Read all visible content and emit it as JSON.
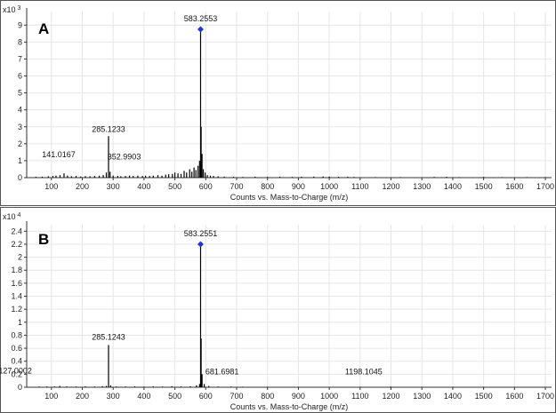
{
  "chart_data": [
    {
      "type": "bar",
      "panel_letter": "A",
      "scale_prefix": "x10",
      "scale_exponent": "3",
      "xlabel": "Counts vs. Mass-to-Charge (m/z)",
      "xlim": [
        20,
        1720
      ],
      "ylim": [
        0,
        9.8
      ],
      "x_ticks": [
        "100",
        "200",
        "300",
        "400",
        "500",
        "600",
        "700",
        "800",
        "900",
        "1000",
        "1100",
        "1200",
        "1300",
        "1400",
        "1500",
        "1600",
        "1700"
      ],
      "y_ticks": [
        "0",
        "1",
        "2",
        "3",
        "4",
        "5",
        "6",
        "7",
        "8",
        "9"
      ],
      "grid": true,
      "colors": {
        "peaks": "#000000",
        "marker": "#1f35d6",
        "grid": "#e6e6e6",
        "frame": "#555555"
      },
      "annotations": [
        {
          "text": "583.2553",
          "x": 583.2553,
          "y": 8.75,
          "marker": "diamond"
        },
        {
          "text": "285.1233",
          "x": 285.1233,
          "y": 2.45
        },
        {
          "text": "141.0167",
          "x": 141.0167,
          "y": 0.25
        },
        {
          "text": "352.9903",
          "x": 352.9903,
          "y": 0.12
        }
      ],
      "peaks": [
        [
          50,
          0.05
        ],
        [
          70,
          0.06
        ],
        [
          90,
          0.08
        ],
        [
          105,
          0.1
        ],
        [
          115,
          0.12
        ],
        [
          128,
          0.15
        ],
        [
          141,
          0.25
        ],
        [
          152,
          0.12
        ],
        [
          165,
          0.08
        ],
        [
          180,
          0.1
        ],
        [
          195,
          0.07
        ],
        [
          210,
          0.09
        ],
        [
          225,
          0.08
        ],
        [
          240,
          0.1
        ],
        [
          255,
          0.12
        ],
        [
          268,
          0.15
        ],
        [
          278,
          0.3
        ],
        [
          285.1233,
          2.45
        ],
        [
          290,
          0.35
        ],
        [
          300,
          0.12
        ],
        [
          315,
          0.1
        ],
        [
          325,
          0.08
        ],
        [
          340,
          0.1
        ],
        [
          352.9903,
          0.12
        ],
        [
          365,
          0.1
        ],
        [
          380,
          0.12
        ],
        [
          395,
          0.1
        ],
        [
          405,
          0.12
        ],
        [
          418,
          0.1
        ],
        [
          430,
          0.12
        ],
        [
          445,
          0.15
        ],
        [
          458,
          0.12
        ],
        [
          470,
          0.18
        ],
        [
          480,
          0.2
        ],
        [
          492,
          0.22
        ],
        [
          500,
          0.3
        ],
        [
          510,
          0.25
        ],
        [
          520,
          0.22
        ],
        [
          530,
          0.4
        ],
        [
          538,
          0.3
        ],
        [
          548,
          0.5
        ],
        [
          555,
          0.35
        ],
        [
          562,
          0.6
        ],
        [
          568,
          0.45
        ],
        [
          575,
          0.7
        ],
        [
          580,
          1.0
        ],
        [
          583.2553,
          8.75
        ],
        [
          585,
          3.0
        ],
        [
          588,
          1.4
        ],
        [
          592,
          0.5
        ],
        [
          598,
          0.3
        ],
        [
          605,
          0.15
        ],
        [
          615,
          0.12
        ],
        [
          625,
          0.1
        ],
        [
          640,
          0.08
        ],
        [
          660,
          0.06
        ],
        [
          690,
          0.05
        ],
        [
          720,
          0.04
        ],
        [
          760,
          0.05
        ],
        [
          800,
          0.04
        ],
        [
          840,
          0.05
        ],
        [
          880,
          0.04
        ],
        [
          910,
          0.05
        ],
        [
          950,
          0.06
        ],
        [
          980,
          0.07
        ],
        [
          1000,
          0.06
        ],
        [
          1030,
          0.05
        ],
        [
          1060,
          0.05
        ],
        [
          1080,
          0.04
        ],
        [
          1150,
          0.03
        ],
        [
          1230,
          0.03
        ],
        [
          1340,
          0.04
        ],
        [
          1380,
          0.05
        ],
        [
          1420,
          0.03
        ],
        [
          1500,
          0.04
        ],
        [
          1560,
          0.03
        ],
        [
          1640,
          0.03
        ],
        [
          1700,
          0.03
        ]
      ]
    },
    {
      "type": "bar",
      "panel_letter": "B",
      "scale_prefix": "x10",
      "scale_exponent": "4",
      "xlabel": "Counts vs. Mass-to-Charge (m/z)",
      "xlim": [
        20,
        1720
      ],
      "ylim": [
        0,
        2.5
      ],
      "x_ticks": [
        "100",
        "200",
        "300",
        "400",
        "500",
        "600",
        "700",
        "800",
        "900",
        "1000",
        "1100",
        "1200",
        "1300",
        "1400",
        "1500",
        "1600",
        "1700"
      ],
      "y_ticks": [
        "0",
        "0.2",
        "0.4",
        "0.6",
        "0.8",
        "1",
        "1.2",
        "1.4",
        "1.6",
        "1.8",
        "2",
        "2.2",
        "2.4"
      ],
      "grid": true,
      "colors": {
        "peaks": "#000000",
        "marker": "#1f35d6",
        "grid": "#e6e6e6",
        "frame": "#555555"
      },
      "annotations": [
        {
          "text": "583.2551",
          "x": 583.2551,
          "y": 2.2,
          "marker": "diamond"
        },
        {
          "text": "285.1243",
          "x": 285.1243,
          "y": 0.65
        },
        {
          "text": "127.0002",
          "x": 127.0002,
          "y": 0.02
        },
        {
          "text": "681.6981",
          "x": 681.6981,
          "y": 0.01
        },
        {
          "text": "1198.1045",
          "x": 1198.1045,
          "y": 0.01
        }
      ],
      "peaks": [
        [
          60,
          0.01
        ],
        [
          85,
          0.01
        ],
        [
          110,
          0.012
        ],
        [
          127,
          0.02
        ],
        [
          150,
          0.01
        ],
        [
          180,
          0.01
        ],
        [
          210,
          0.012
        ],
        [
          240,
          0.01
        ],
        [
          265,
          0.015
        ],
        [
          278,
          0.02
        ],
        [
          285.1243,
          0.65
        ],
        [
          292,
          0.03
        ],
        [
          310,
          0.01
        ],
        [
          340,
          0.01
        ],
        [
          370,
          0.012
        ],
        [
          400,
          0.01
        ],
        [
          430,
          0.012
        ],
        [
          460,
          0.01
        ],
        [
          490,
          0.015
        ],
        [
          520,
          0.012
        ],
        [
          550,
          0.015
        ],
        [
          570,
          0.03
        ],
        [
          580,
          0.05
        ],
        [
          583.2551,
          2.2
        ],
        [
          585,
          0.75
        ],
        [
          588,
          0.2
        ],
        [
          595,
          0.05
        ],
        [
          610,
          0.02
        ],
        [
          640,
          0.01
        ],
        [
          681.6981,
          0.01
        ],
        [
          720,
          0.008
        ],
        [
          800,
          0.006
        ],
        [
          900,
          0.006
        ],
        [
          1000,
          0.005
        ],
        [
          1100,
          0.005
        ],
        [
          1198.1045,
          0.01
        ],
        [
          1300,
          0.004
        ],
        [
          1400,
          0.004
        ],
        [
          1500,
          0.004
        ],
        [
          1600,
          0.004
        ],
        [
          1700,
          0.004
        ]
      ]
    }
  ]
}
